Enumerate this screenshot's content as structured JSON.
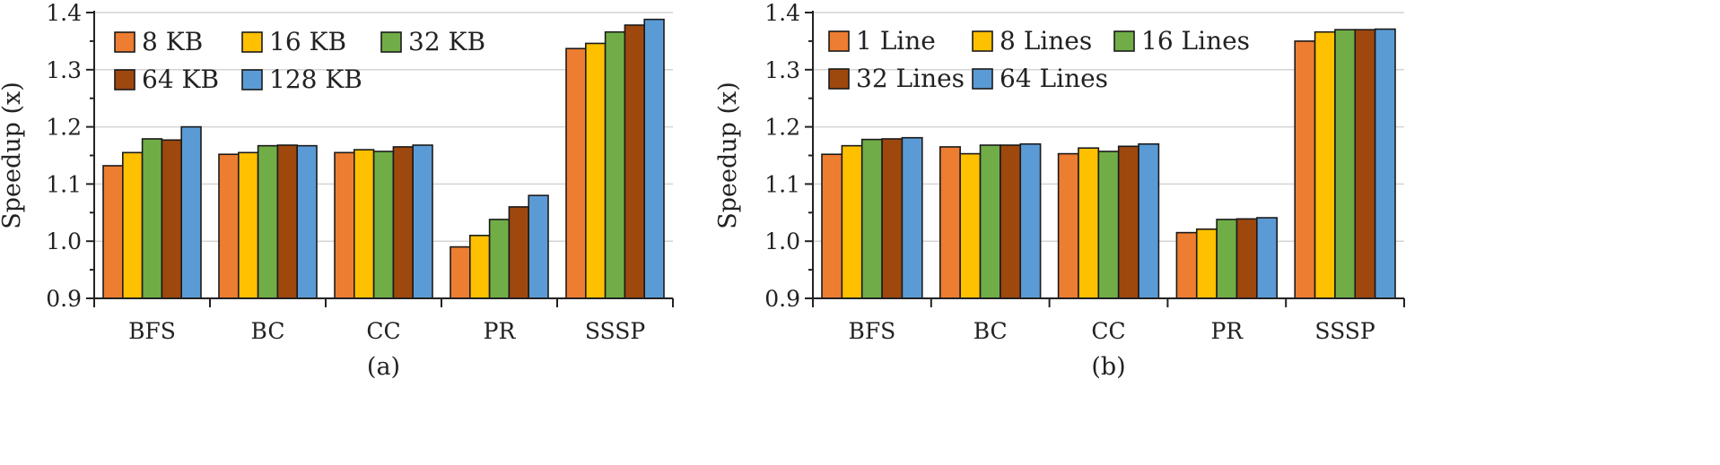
{
  "colors": {
    "orange": "#ED7D31",
    "yellow": "#FFC000",
    "green": "#70AD47",
    "brown": "#9E480E",
    "blue": "#5B9BD5"
  },
  "chart_data": [
    {
      "type": "bar",
      "caption": "(a)",
      "ylabel": "Speedup (x)",
      "xlabel": "",
      "ylim": [
        0.9,
        1.4
      ],
      "yticks": [
        "0.9",
        "1.0",
        "1.1",
        "1.2",
        "1.3",
        "1.4"
      ],
      "grid": true,
      "legend_position": "top-left",
      "categories": [
        "BFS",
        "BC",
        "CC",
        "PR",
        "SSSP"
      ],
      "series": [
        {
          "name": "8 KB",
          "color": "#ED7D31",
          "values": [
            1.132,
            1.152,
            1.155,
            0.99,
            1.337
          ]
        },
        {
          "name": "16 KB",
          "color": "#FFC000",
          "values": [
            1.155,
            1.155,
            1.16,
            1.01,
            1.346
          ]
        },
        {
          "name": "32 KB",
          "color": "#70AD47",
          "values": [
            1.179,
            1.167,
            1.157,
            1.038,
            1.366
          ]
        },
        {
          "name": "64 KB",
          "color": "#9E480E",
          "values": [
            1.177,
            1.168,
            1.165,
            1.06,
            1.378
          ]
        },
        {
          "name": "128 KB",
          "color": "#5B9BD5",
          "values": [
            1.2,
            1.167,
            1.168,
            1.08,
            1.388
          ]
        }
      ]
    },
    {
      "type": "bar",
      "caption": "(b)",
      "ylabel": "Speedup (x)",
      "xlabel": "",
      "ylim": [
        0.9,
        1.4
      ],
      "yticks": [
        "0.9",
        "1.0",
        "1.1",
        "1.2",
        "1.3",
        "1.4"
      ],
      "grid": true,
      "legend_position": "top-left",
      "categories": [
        "BFS",
        "BC",
        "CC",
        "PR",
        "SSSP"
      ],
      "series": [
        {
          "name": "1 Line",
          "color": "#ED7D31",
          "values": [
            1.152,
            1.165,
            1.153,
            1.015,
            1.35
          ]
        },
        {
          "name": "8 Lines",
          "color": "#FFC000",
          "values": [
            1.167,
            1.153,
            1.163,
            1.021,
            1.366
          ]
        },
        {
          "name": "16 Lines",
          "color": "#70AD47",
          "values": [
            1.178,
            1.168,
            1.157,
            1.038,
            1.37
          ]
        },
        {
          "name": "32 Lines",
          "color": "#9E480E",
          "values": [
            1.179,
            1.168,
            1.166,
            1.039,
            1.37
          ]
        },
        {
          "name": "64 Lines",
          "color": "#5B9BD5",
          "values": [
            1.181,
            1.17,
            1.17,
            1.041,
            1.371
          ]
        }
      ]
    }
  ]
}
